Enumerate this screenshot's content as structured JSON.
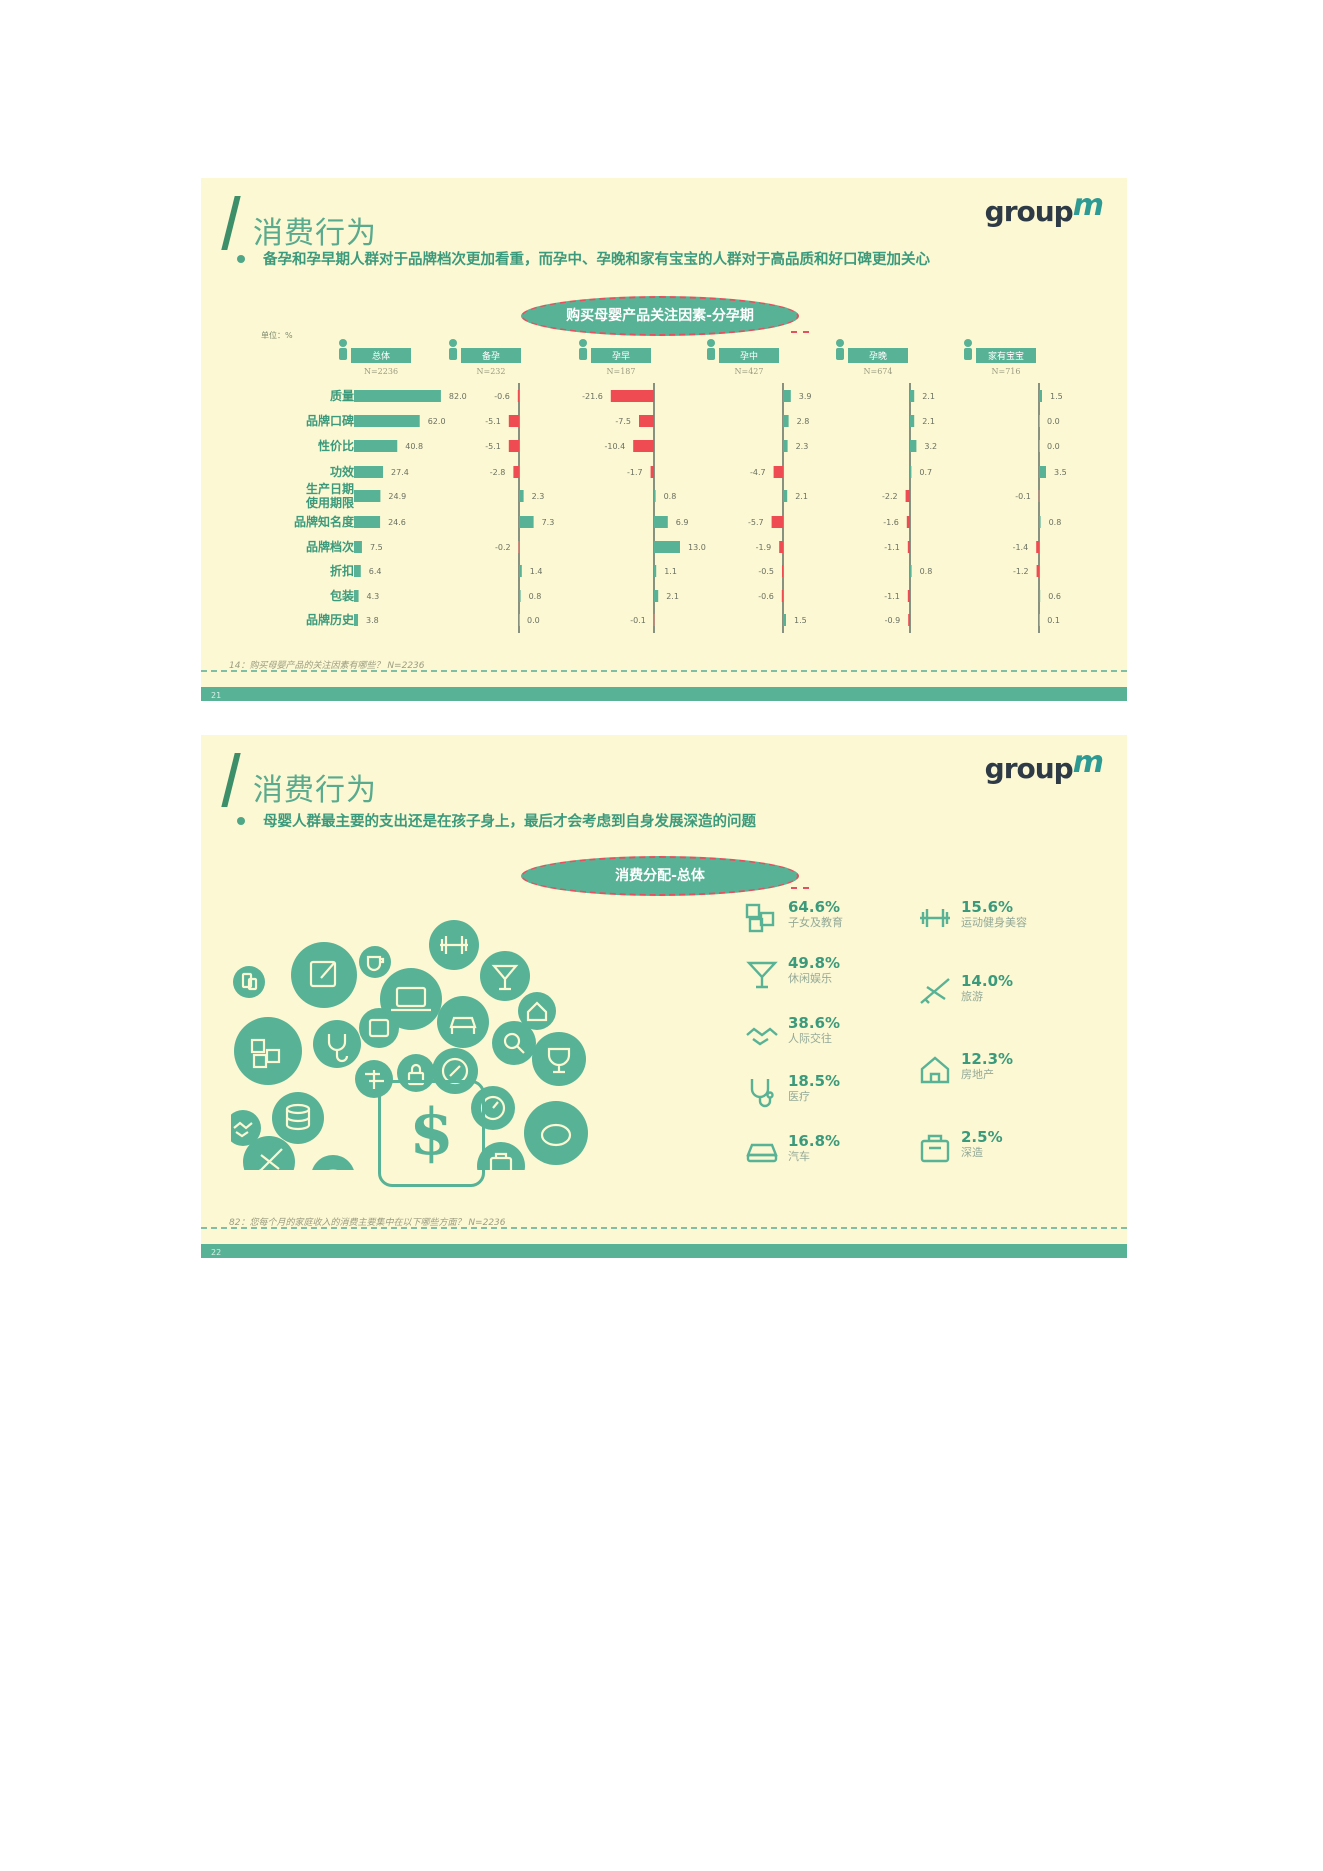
{
  "colors": {
    "teal": "#58b295",
    "dark_teal": "#3c9a7c",
    "red": "#ee4b52",
    "bg": "#fbf8d3"
  },
  "slide1": {
    "title": "消费行为",
    "logo_text": "group",
    "logo_m": "m",
    "subtitle": "备孕和孕早期人群对于品牌档次更加看重，而孕中、孕晚和家有宝宝的人群对于高品质和好口碑更加关心",
    "pill": "购买母婴产品关注因素-分孕期",
    "unit": "单位：%",
    "footnote": "14：购买母婴产品的关注因素有哪些？ N=2236",
    "page_no": "21"
  },
  "chart_data": {
    "type": "bar",
    "title": "购买母婴产品关注因素-分孕期",
    "unit": "%",
    "categories": [
      "质量",
      "品牌口碑",
      "性价比",
      "功效",
      "生产日期使用期限",
      "品牌知名度",
      "品牌档次",
      "折扣",
      "包装",
      "品牌历史"
    ],
    "category_lines": [
      [
        "质量"
      ],
      [
        "品牌口碑"
      ],
      [
        "性价比"
      ],
      [
        "功效"
      ],
      [
        "生产日期",
        "使用期限"
      ],
      [
        "品牌知名度"
      ],
      [
        "品牌档次"
      ],
      [
        "折扣"
      ],
      [
        "包装"
      ],
      [
        "品牌历史"
      ]
    ],
    "series": [
      {
        "name": "总体",
        "n": "N=2236",
        "values": [
          82.0,
          62.0,
          40.8,
          27.4,
          24.9,
          24.6,
          7.5,
          6.4,
          4.3,
          3.8
        ],
        "kind": "absolute"
      },
      {
        "name": "备孕",
        "n": "N=232",
        "values": [
          -0.6,
          -5.1,
          -5.1,
          -2.8,
          2.3,
          7.3,
          -0.2,
          1.4,
          0.8,
          0.0
        ],
        "kind": "diff"
      },
      {
        "name": "孕早",
        "n": "N=187",
        "values": [
          -21.6,
          -7.5,
          -10.4,
          -1.7,
          0.8,
          6.9,
          13.0,
          1.1,
          2.1,
          -0.1
        ],
        "kind": "diff"
      },
      {
        "name": "孕中",
        "n": "N=427",
        "values": [
          3.9,
          2.8,
          2.3,
          -4.7,
          2.1,
          -5.7,
          -1.9,
          -0.5,
          -0.6,
          1.5
        ],
        "kind": "diff"
      },
      {
        "name": "孕晚",
        "n": "N=674",
        "values": [
          2.1,
          2.1,
          3.2,
          0.7,
          -2.2,
          -1.6,
          -1.1,
          0.8,
          -1.1,
          -0.9
        ],
        "kind": "diff"
      },
      {
        "name": "家有宝宝",
        "n": "N=716",
        "values": [
          1.5,
          0.0,
          0.0,
          3.5,
          -0.1,
          0.8,
          -1.4,
          -1.2,
          0.6,
          0.1
        ],
        "kind": "diff"
      }
    ],
    "value_labels": [
      [
        "82.0",
        "62.0",
        "40.8",
        "27.4",
        "24.9",
        "24.6",
        "7.5",
        "6.4",
        "4.3",
        "3.8"
      ],
      [
        "-0.6",
        "-5.1",
        "-5.1",
        "-2.8",
        "2.3",
        "7.3",
        "-0.2",
        "1.4",
        "0.8",
        "0.0"
      ],
      [
        "-21.6",
        "-7.5",
        "-10.4",
        "-1.7",
        "0.8",
        "6.9",
        "13.0",
        "1.1",
        "2.1",
        "-0.1"
      ],
      [
        "3.9",
        "2.8",
        "2.3",
        "-4.7",
        "2.1",
        "-5.7",
        "-1.9",
        "-0.5",
        "-0.6",
        "1.5"
      ],
      [
        "2.1",
        "2.1",
        "3.2",
        "0.7",
        "-2.2",
        "-1.6",
        "-1.1",
        "0.8",
        "-1.1",
        "-0.9"
      ],
      [
        "1.5",
        "0.0",
        "0.0",
        "3.5",
        "-0.1",
        "0.8",
        "-1.4",
        "-1.2",
        "0.6",
        "0.1"
      ]
    ]
  },
  "slide2": {
    "title": "消费行为",
    "logo_text": "group",
    "logo_m": "m",
    "subtitle": "母婴人群最主要的支出还是在孩子身上，最后才会考虑到自身发展深造的问题",
    "pill": "消费分配-总体",
    "footnote": "82：您每个月的家庭收入的消费主要集中在以下哪些方面？ N=2236",
    "page_no": "22",
    "dollar": "$",
    "stats_left": [
      {
        "pct": "64.6%",
        "label": "子女及教育",
        "icon": "abc-blocks-icon"
      },
      {
        "pct": "49.8%",
        "label": "休闲娱乐",
        "icon": "cocktail-icon"
      },
      {
        "pct": "38.6%",
        "label": "人际交往",
        "icon": "handshake-icon"
      },
      {
        "pct": "18.5%",
        "label": "医疗",
        "icon": "stethoscope-icon"
      },
      {
        "pct": "16.8%",
        "label": "汽车",
        "icon": "car-icon"
      }
    ],
    "stats_right": [
      {
        "pct": "15.6%",
        "label": "运动健身美容",
        "icon": "dumbbell-icon"
      },
      {
        "pct": "14.0%",
        "label": "旅游",
        "icon": "airplane-icon"
      },
      {
        "pct": "12.3%",
        "label": "房地产",
        "icon": "house-icon"
      },
      {
        "pct": "2.5%",
        "label": "深造",
        "icon": "briefcase-icon"
      }
    ]
  }
}
